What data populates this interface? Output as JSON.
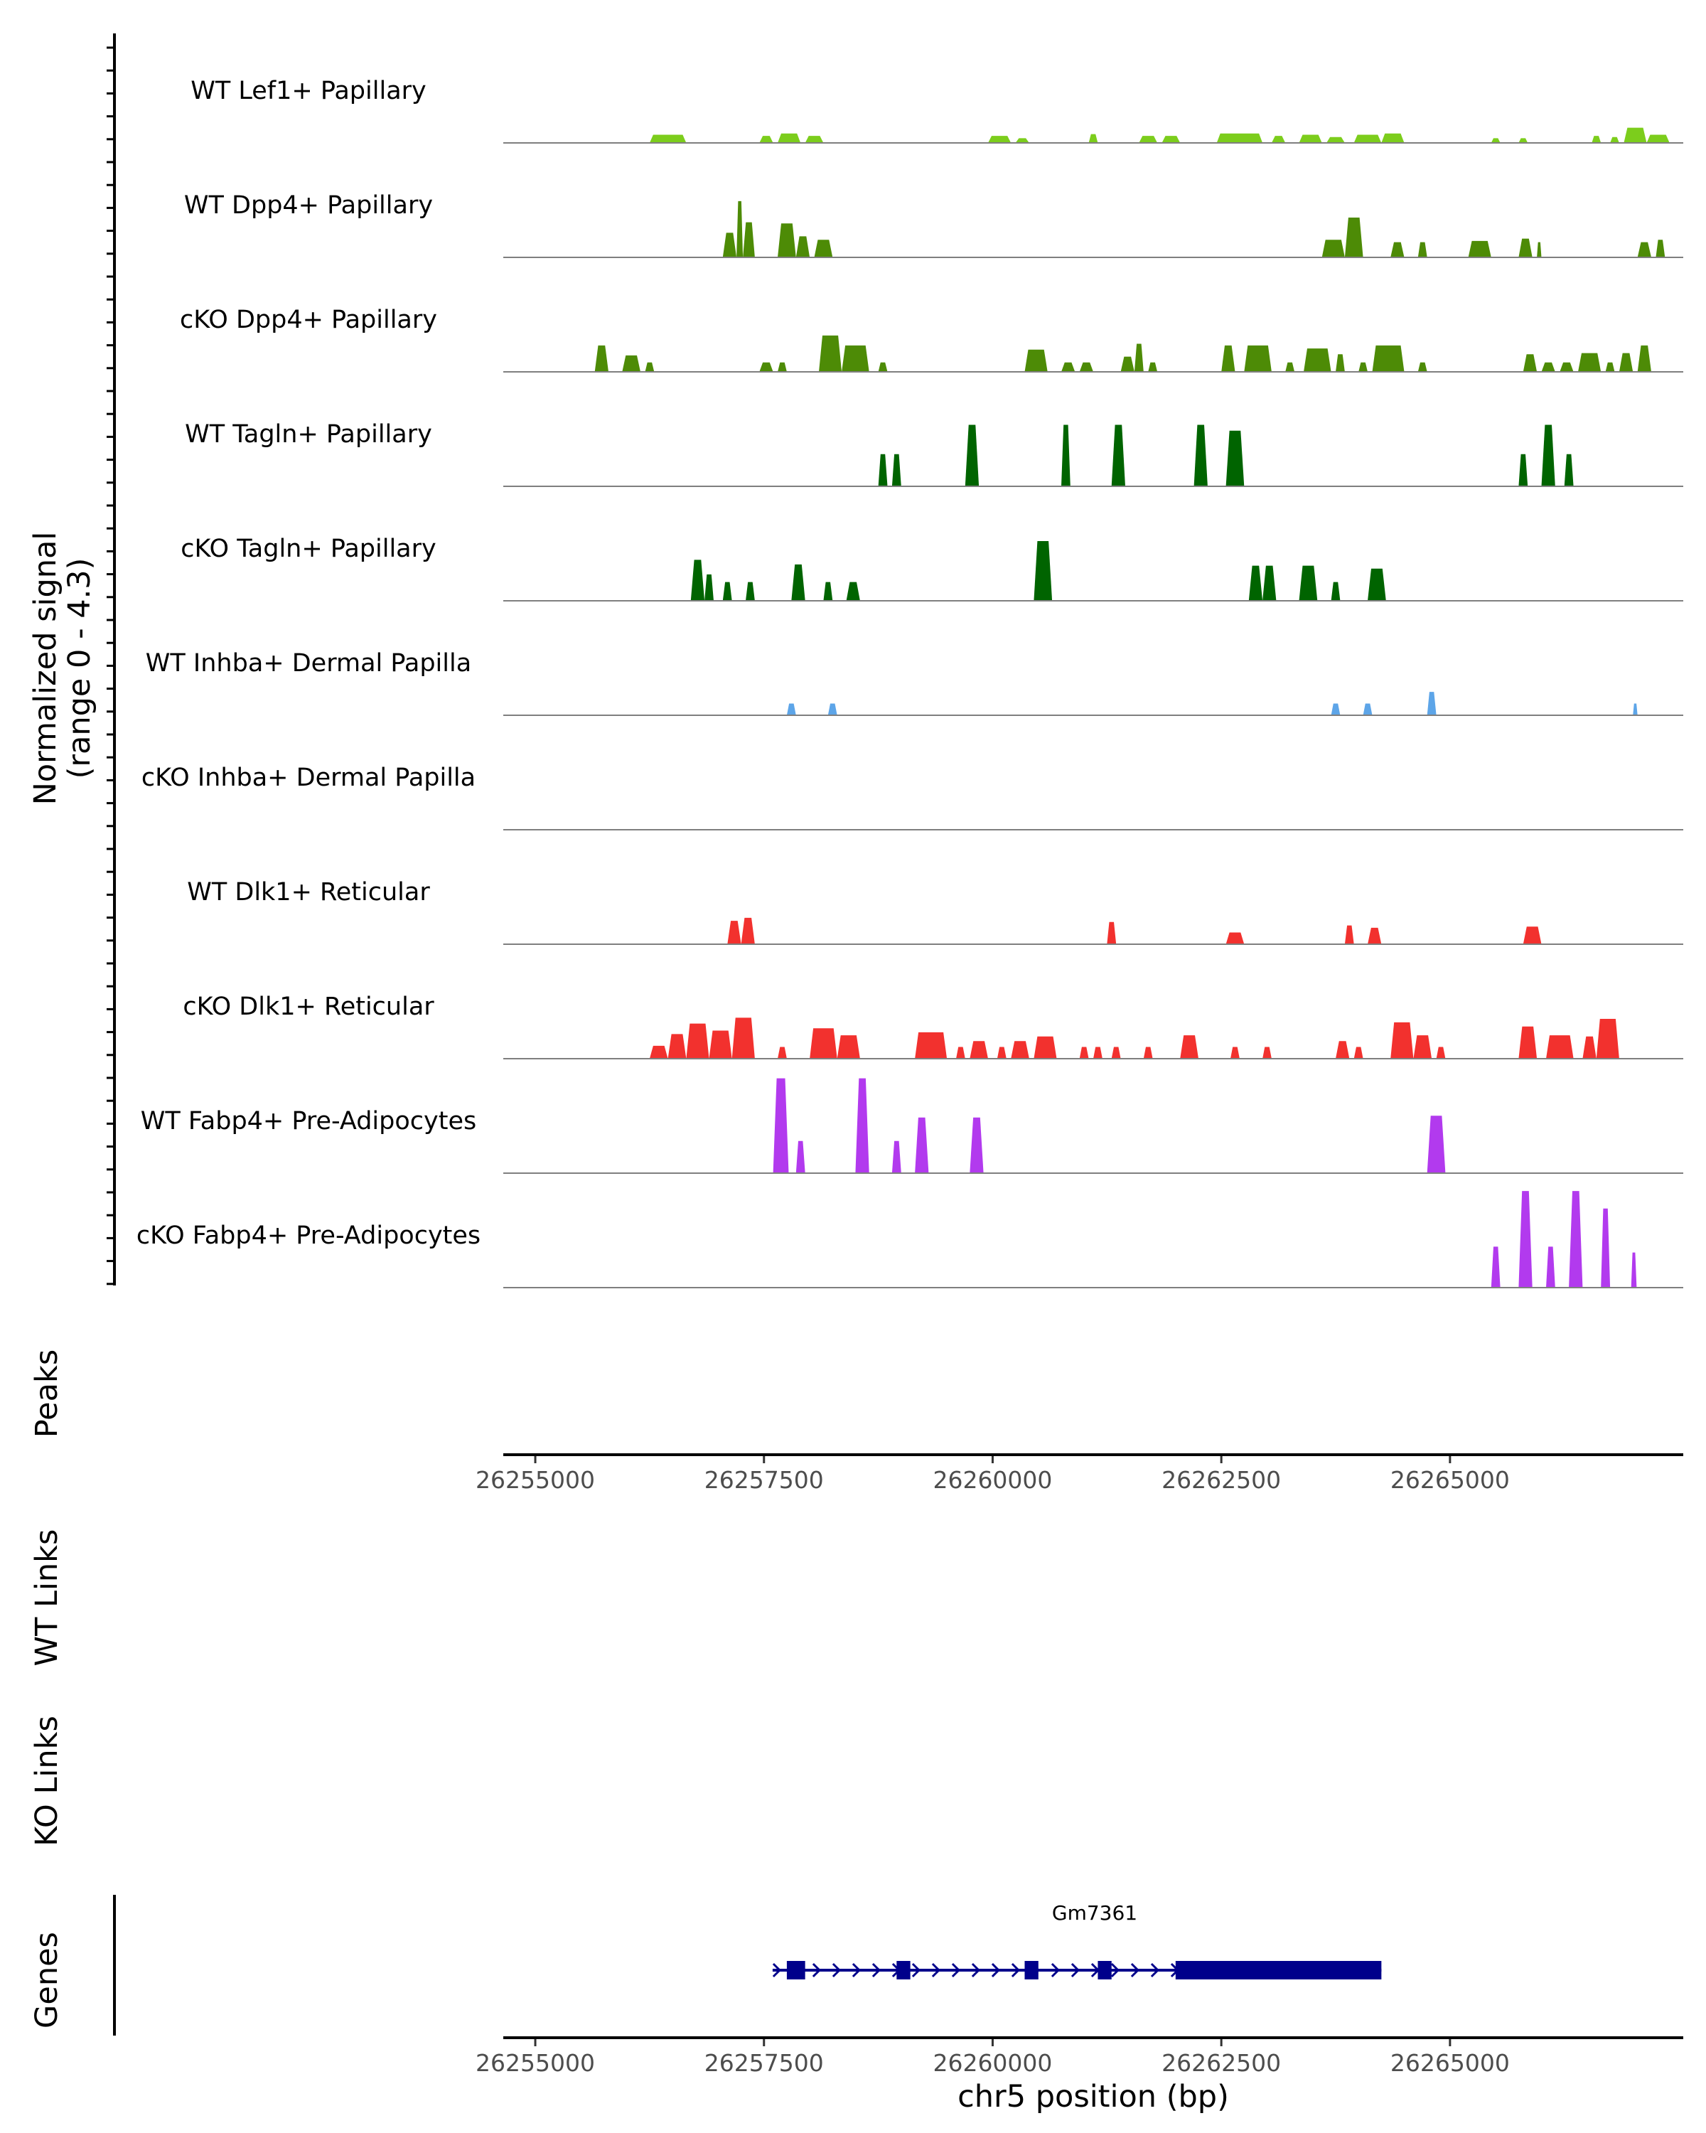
{
  "chart_data": {
    "type": "area",
    "title": "",
    "xlabel": "chr5 position (bp)",
    "ylabel": "Normalized signal\n(range 0 - 4.3)",
    "ylabel_lines": [
      "Normalized signal",
      "(range 0 - 4.3)"
    ],
    "ylim": [
      0,
      4.3
    ],
    "xlim": [
      26254650,
      26267550
    ],
    "x_ticks": [
      26255000,
      26257500,
      26260000,
      26262500,
      26265000
    ],
    "x_tick_labels": [
      "26255000",
      "26257500",
      "26260000",
      "26262500",
      "26265000"
    ],
    "panel_labels": {
      "peaks": "Peaks",
      "wt_links": "WT Links",
      "ko_links": "KO Links",
      "genes": "Genes"
    },
    "tracks": [
      {
        "name": "WT Lef1+ Papillary",
        "color": "#7CCD1C",
        "peaks": [
          {
            "start": 26256250,
            "end": 26256650,
            "h": 0.14
          },
          {
            "start": 26257450,
            "end": 26257600,
            "h": 0.12
          },
          {
            "start": 26257650,
            "end": 26257900,
            "h": 0.16
          },
          {
            "start": 26257950,
            "end": 26258150,
            "h": 0.12
          },
          {
            "start": 26259950,
            "end": 26260200,
            "h": 0.12
          },
          {
            "start": 26260250,
            "end": 26260400,
            "h": 0.08
          },
          {
            "start": 26261050,
            "end": 26261150,
            "h": 0.15
          },
          {
            "start": 26261600,
            "end": 26261800,
            "h": 0.12
          },
          {
            "start": 26261850,
            "end": 26262050,
            "h": 0.12
          },
          {
            "start": 26262450,
            "end": 26262950,
            "h": 0.16
          },
          {
            "start": 26263050,
            "end": 26263200,
            "h": 0.12
          },
          {
            "start": 26263350,
            "end": 26263600,
            "h": 0.14
          },
          {
            "start": 26263650,
            "end": 26263850,
            "h": 0.1
          },
          {
            "start": 26263950,
            "end": 26264250,
            "h": 0.14
          },
          {
            "start": 26264250,
            "end": 26264500,
            "h": 0.16
          },
          {
            "start": 26265450,
            "end": 26265550,
            "h": 0.08
          },
          {
            "start": 26265750,
            "end": 26265850,
            "h": 0.08
          },
          {
            "start": 26266550,
            "end": 26266650,
            "h": 0.12
          },
          {
            "start": 26266750,
            "end": 26266850,
            "h": 0.1
          },
          {
            "start": 26266900,
            "end": 26267150,
            "h": 0.26
          },
          {
            "start": 26267150,
            "end": 26267400,
            "h": 0.14
          }
        ]
      },
      {
        "name": "WT Dpp4+ Papillary",
        "color": "#4D8B06",
        "peaks": [
          {
            "start": 26257050,
            "end": 26257200,
            "h": 0.42
          },
          {
            "start": 26257200,
            "end": 26257270,
            "h": 0.96
          },
          {
            "start": 26257270,
            "end": 26257400,
            "h": 0.6
          },
          {
            "start": 26257650,
            "end": 26257850,
            "h": 0.58
          },
          {
            "start": 26257850,
            "end": 26258000,
            "h": 0.36
          },
          {
            "start": 26258050,
            "end": 26258250,
            "h": 0.3
          },
          {
            "start": 26263600,
            "end": 26263850,
            "h": 0.3
          },
          {
            "start": 26263850,
            "end": 26264050,
            "h": 0.68
          },
          {
            "start": 26264350,
            "end": 26264500,
            "h": 0.26
          },
          {
            "start": 26264650,
            "end": 26264750,
            "h": 0.26
          },
          {
            "start": 26265200,
            "end": 26265450,
            "h": 0.28
          },
          {
            "start": 26265750,
            "end": 26265900,
            "h": 0.32
          },
          {
            "start": 26265950,
            "end": 26266000,
            "h": 0.26
          },
          {
            "start": 26267050,
            "end": 26267200,
            "h": 0.26
          },
          {
            "start": 26267250,
            "end": 26267350,
            "h": 0.3
          }
        ]
      },
      {
        "name": "cKO Dpp4+ Papillary",
        "color": "#4D8B06",
        "peaks": [
          {
            "start": 26255650,
            "end": 26255800,
            "h": 0.45
          },
          {
            "start": 26255950,
            "end": 26256150,
            "h": 0.28
          },
          {
            "start": 26256200,
            "end": 26256300,
            "h": 0.16
          },
          {
            "start": 26257450,
            "end": 26257600,
            "h": 0.16
          },
          {
            "start": 26257650,
            "end": 26257750,
            "h": 0.16
          },
          {
            "start": 26258100,
            "end": 26258350,
            "h": 0.62
          },
          {
            "start": 26258350,
            "end": 26258650,
            "h": 0.45
          },
          {
            "start": 26258750,
            "end": 26258850,
            "h": 0.16
          },
          {
            "start": 26260350,
            "end": 26260600,
            "h": 0.38
          },
          {
            "start": 26260750,
            "end": 26260900,
            "h": 0.16
          },
          {
            "start": 26260950,
            "end": 26261100,
            "h": 0.16
          },
          {
            "start": 26261400,
            "end": 26261550,
            "h": 0.26
          },
          {
            "start": 26261550,
            "end": 26261650,
            "h": 0.48
          },
          {
            "start": 26261700,
            "end": 26261800,
            "h": 0.16
          },
          {
            "start": 26262500,
            "end": 26262650,
            "h": 0.45
          },
          {
            "start": 26262750,
            "end": 26263050,
            "h": 0.45
          },
          {
            "start": 26263200,
            "end": 26263300,
            "h": 0.16
          },
          {
            "start": 26263400,
            "end": 26263700,
            "h": 0.4
          },
          {
            "start": 26263750,
            "end": 26263850,
            "h": 0.3
          },
          {
            "start": 26264000,
            "end": 26264100,
            "h": 0.16
          },
          {
            "start": 26264150,
            "end": 26264500,
            "h": 0.45
          },
          {
            "start": 26264650,
            "end": 26264750,
            "h": 0.16
          },
          {
            "start": 26265800,
            "end": 26265950,
            "h": 0.3
          },
          {
            "start": 26266000,
            "end": 26266150,
            "h": 0.16
          },
          {
            "start": 26266200,
            "end": 26266350,
            "h": 0.16
          },
          {
            "start": 26266400,
            "end": 26266650,
            "h": 0.32
          },
          {
            "start": 26266700,
            "end": 26266800,
            "h": 0.16
          },
          {
            "start": 26266850,
            "end": 26267000,
            "h": 0.32
          },
          {
            "start": 26267050,
            "end": 26267200,
            "h": 0.45
          }
        ]
      },
      {
        "name": "WT Tagln+ Papillary",
        "color": "#006400",
        "peaks": [
          {
            "start": 26258750,
            "end": 26258850,
            "h": 0.55
          },
          {
            "start": 26258900,
            "end": 26259000,
            "h": 0.55
          },
          {
            "start": 26259700,
            "end": 26259850,
            "h": 1.05
          },
          {
            "start": 26260750,
            "end": 26260850,
            "h": 1.05
          },
          {
            "start": 26261300,
            "end": 26261450,
            "h": 1.05
          },
          {
            "start": 26262200,
            "end": 26262350,
            "h": 1.05
          },
          {
            "start": 26262550,
            "end": 26262750,
            "h": 0.95
          },
          {
            "start": 26265750,
            "end": 26265850,
            "h": 0.55
          },
          {
            "start": 26266000,
            "end": 26266150,
            "h": 1.05
          },
          {
            "start": 26266250,
            "end": 26266350,
            "h": 0.55
          }
        ]
      },
      {
        "name": "cKO Tagln+ Papillary",
        "color": "#006400",
        "peaks": [
          {
            "start": 26256700,
            "end": 26256850,
            "h": 0.7
          },
          {
            "start": 26256850,
            "end": 26256950,
            "h": 0.45
          },
          {
            "start": 26257050,
            "end": 26257150,
            "h": 0.32
          },
          {
            "start": 26257300,
            "end": 26257400,
            "h": 0.32
          },
          {
            "start": 26257800,
            "end": 26257950,
            "h": 0.62
          },
          {
            "start": 26258150,
            "end": 26258250,
            "h": 0.32
          },
          {
            "start": 26258400,
            "end": 26258550,
            "h": 0.32
          },
          {
            "start": 26260450,
            "end": 26260650,
            "h": 1.02
          },
          {
            "start": 26262800,
            "end": 26262950,
            "h": 0.6
          },
          {
            "start": 26262950,
            "end": 26263100,
            "h": 0.6
          },
          {
            "start": 26263350,
            "end": 26263550,
            "h": 0.6
          },
          {
            "start": 26263700,
            "end": 26263800,
            "h": 0.32
          },
          {
            "start": 26264100,
            "end": 26264300,
            "h": 0.55
          }
        ]
      },
      {
        "name": "WT Inhba+ Dermal Papilla",
        "color": "#5DA5E8",
        "peaks": [
          {
            "start": 26257750,
            "end": 26257850,
            "h": 0.2
          },
          {
            "start": 26258200,
            "end": 26258300,
            "h": 0.2
          },
          {
            "start": 26263700,
            "end": 26263800,
            "h": 0.2
          },
          {
            "start": 26264050,
            "end": 26264150,
            "h": 0.2
          },
          {
            "start": 26264750,
            "end": 26264850,
            "h": 0.4
          },
          {
            "start": 26267000,
            "end": 26267050,
            "h": 0.2
          }
        ]
      },
      {
        "name": "cKO Inhba+ Dermal Papilla",
        "color": "#5DA5E8",
        "peaks": []
      },
      {
        "name": "WT Dlk1+ Reticular",
        "color": "#F2312E",
        "peaks": [
          {
            "start": 26257100,
            "end": 26257250,
            "h": 0.4
          },
          {
            "start": 26257250,
            "end": 26257400,
            "h": 0.45
          },
          {
            "start": 26261250,
            "end": 26261350,
            "h": 0.38
          },
          {
            "start": 26262550,
            "end": 26262750,
            "h": 0.2
          },
          {
            "start": 26263850,
            "end": 26263950,
            "h": 0.32
          },
          {
            "start": 26264100,
            "end": 26264250,
            "h": 0.28
          },
          {
            "start": 26265800,
            "end": 26266000,
            "h": 0.3
          }
        ]
      },
      {
        "name": "cKO Dlk1+ Reticular",
        "color": "#F2312E",
        "peaks": [
          {
            "start": 26256250,
            "end": 26256450,
            "h": 0.22
          },
          {
            "start": 26256450,
            "end": 26256650,
            "h": 0.42
          },
          {
            "start": 26256650,
            "end": 26256900,
            "h": 0.6
          },
          {
            "start": 26256900,
            "end": 26257150,
            "h": 0.48
          },
          {
            "start": 26257150,
            "end": 26257400,
            "h": 0.7
          },
          {
            "start": 26257650,
            "end": 26257750,
            "h": 0.2
          },
          {
            "start": 26258000,
            "end": 26258300,
            "h": 0.52
          },
          {
            "start": 26258300,
            "end": 26258550,
            "h": 0.4
          },
          {
            "start": 26259150,
            "end": 26259500,
            "h": 0.45
          },
          {
            "start": 26259600,
            "end": 26259700,
            "h": 0.2
          },
          {
            "start": 26259750,
            "end": 26259950,
            "h": 0.3
          },
          {
            "start": 26260050,
            "end": 26260150,
            "h": 0.2
          },
          {
            "start": 26260200,
            "end": 26260400,
            "h": 0.3
          },
          {
            "start": 26260450,
            "end": 26260700,
            "h": 0.38
          },
          {
            "start": 26260950,
            "end": 26261050,
            "h": 0.2
          },
          {
            "start": 26261100,
            "end": 26261200,
            "h": 0.2
          },
          {
            "start": 26261300,
            "end": 26261400,
            "h": 0.2
          },
          {
            "start": 26261650,
            "end": 26261750,
            "h": 0.2
          },
          {
            "start": 26262050,
            "end": 26262250,
            "h": 0.4
          },
          {
            "start": 26262600,
            "end": 26262700,
            "h": 0.2
          },
          {
            "start": 26262950,
            "end": 26263050,
            "h": 0.2
          },
          {
            "start": 26263750,
            "end": 26263900,
            "h": 0.3
          },
          {
            "start": 26263950,
            "end": 26264050,
            "h": 0.2
          },
          {
            "start": 26264350,
            "end": 26264600,
            "h": 0.62
          },
          {
            "start": 26264600,
            "end": 26264800,
            "h": 0.4
          },
          {
            "start": 26264850,
            "end": 26264950,
            "h": 0.2
          },
          {
            "start": 26265750,
            "end": 26265950,
            "h": 0.55
          },
          {
            "start": 26266050,
            "end": 26266350,
            "h": 0.4
          },
          {
            "start": 26266450,
            "end": 26266600,
            "h": 0.38
          },
          {
            "start": 26266600,
            "end": 26266850,
            "h": 0.68
          }
        ]
      },
      {
        "name": "WT Fabp4+ Pre-Adipocytes",
        "color": "#B23AEE",
        "peaks": [
          {
            "start": 26257600,
            "end": 26257770,
            "h": 1.62
          },
          {
            "start": 26257850,
            "end": 26257950,
            "h": 0.55
          },
          {
            "start": 26258500,
            "end": 26258650,
            "h": 1.62
          },
          {
            "start": 26258900,
            "end": 26259000,
            "h": 0.55
          },
          {
            "start": 26259150,
            "end": 26259300,
            "h": 0.95
          },
          {
            "start": 26259750,
            "end": 26259900,
            "h": 0.95
          },
          {
            "start": 26264750,
            "end": 26264950,
            "h": 0.98
          }
        ]
      },
      {
        "name": "cKO Fabp4+ Pre-Adipocytes",
        "color": "#B23AEE",
        "peaks": [
          {
            "start": 26265450,
            "end": 26265550,
            "h": 0.7
          },
          {
            "start": 26265750,
            "end": 26265900,
            "h": 1.65
          },
          {
            "start": 26266050,
            "end": 26266150,
            "h": 0.7
          },
          {
            "start": 26266300,
            "end": 26266450,
            "h": 1.65
          },
          {
            "start": 26266650,
            "end": 26266750,
            "h": 1.35
          },
          {
            "start": 26266980,
            "end": 26267040,
            "h": 0.6
          }
        ]
      }
    ],
    "gene": {
      "name": "Gm7361",
      "color": "#00008B",
      "start": 26257750,
      "end": 26264250,
      "exons": [
        [
          26257750,
          26257950
        ],
        [
          26258950,
          26259100
        ],
        [
          26260350,
          26260500
        ],
        [
          26261150,
          26261300
        ],
        [
          26262000,
          26264250
        ]
      ]
    }
  }
}
